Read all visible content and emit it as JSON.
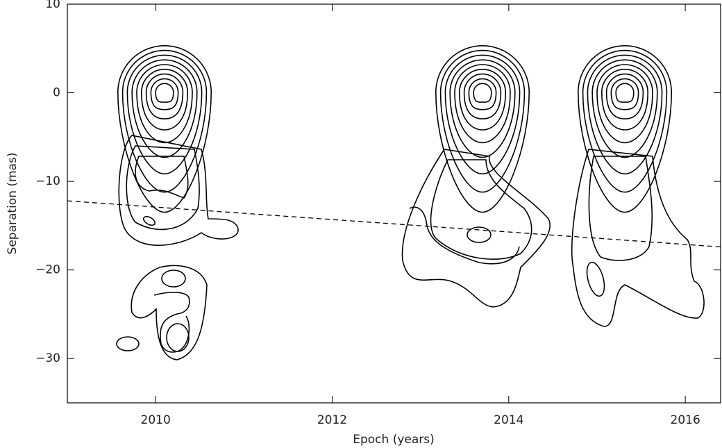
{
  "chart_data": {
    "type": "line",
    "x_label": "Epoch (years)",
    "y_label": "Separation (mas)",
    "xlim": [
      2009,
      2016.4
    ],
    "ylim": [
      -35,
      10
    ],
    "xticks": [
      2010,
      2012,
      2014,
      2016
    ],
    "yticks": [
      10,
      0,
      {
        "value": -10,
        "label": "−10"
      },
      {
        "value": -20,
        "label": "−20"
      },
      {
        "value": -30,
        "label": "−30"
      }
    ],
    "series": [
      {
        "color": "#000000",
        "dashed": true,
        "x": [
          2009,
          2016.4
        ],
        "values": [
          -12.2,
          -17.4
        ]
      }
    ]
  }
}
